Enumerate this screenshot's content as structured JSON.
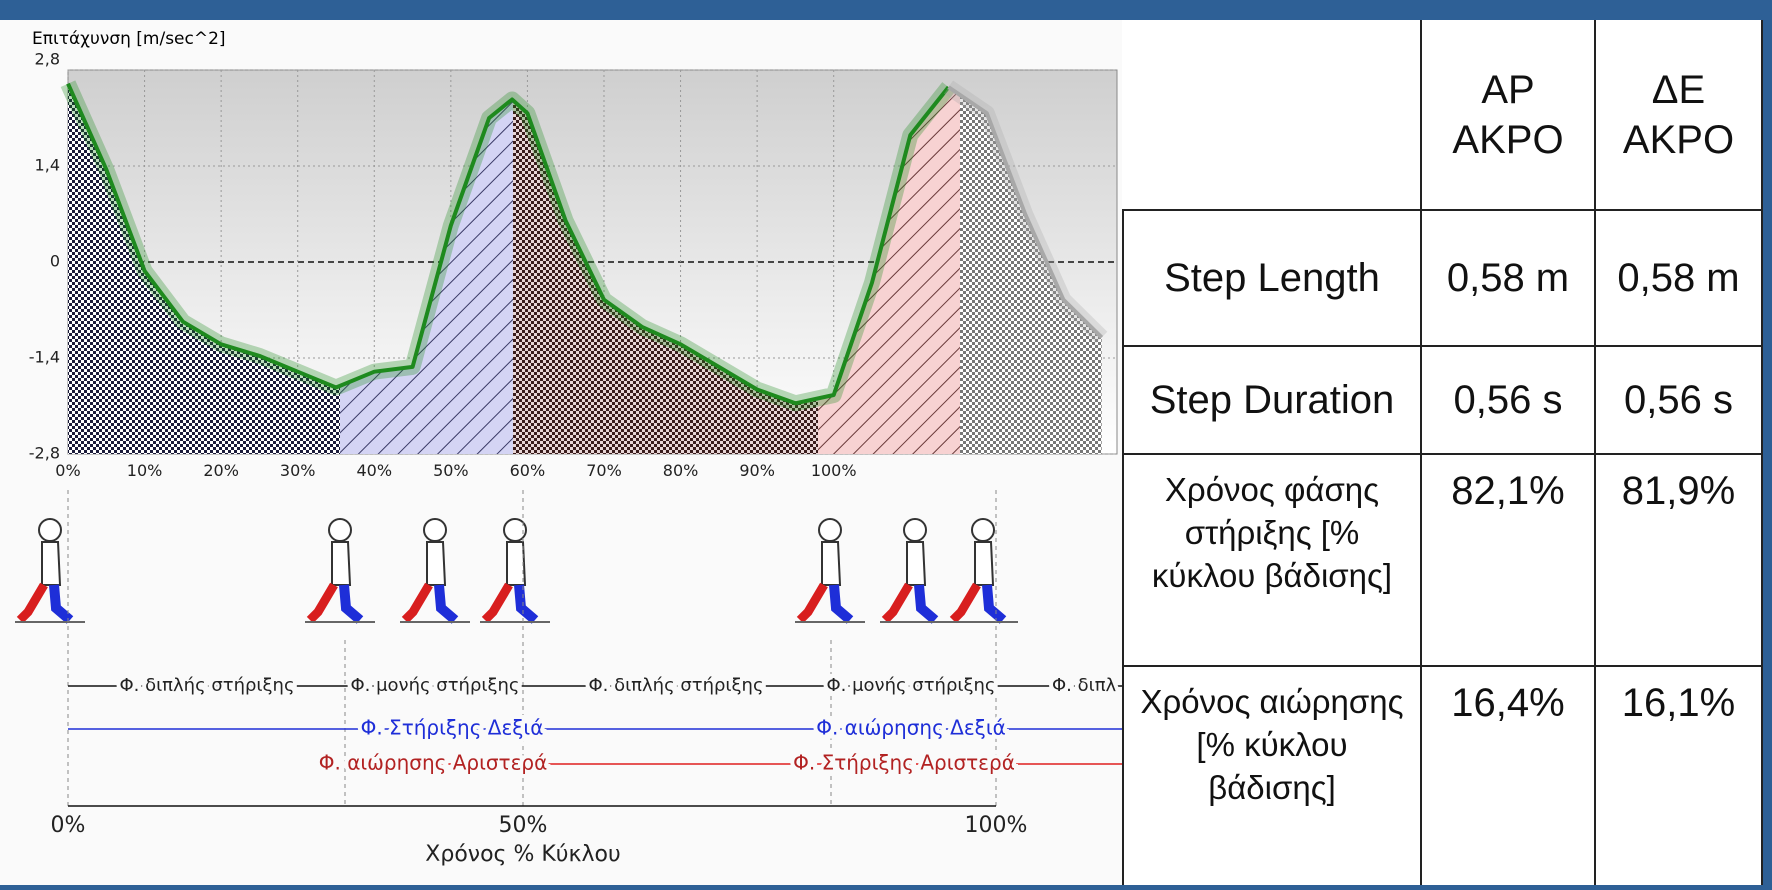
{
  "chart_data": {
    "type": "line",
    "y_label": "Επιτάχυνση [m/sec^2]",
    "x": [
      0,
      5,
      10,
      15,
      20,
      25,
      30,
      35,
      40,
      45,
      50,
      55,
      58,
      60,
      65,
      70,
      75,
      80,
      85,
      90,
      95,
      100,
      105,
      110,
      115,
      120,
      125,
      130,
      135
    ],
    "series": [
      {
        "color": "#1e8a1e",
        "values": [
          2.6,
          1.35,
          -0.13,
          -0.87,
          -1.2,
          -1.37,
          -1.6,
          -1.83,
          -1.6,
          -1.53,
          0.53,
          2.1,
          2.37,
          2.17,
          0.6,
          -0.55,
          -0.95,
          -1.2,
          -1.53,
          -1.86,
          -2.06,
          -1.94,
          -0.3,
          1.85,
          2.55,
          null,
          null,
          null,
          null
        ]
      },
      {
        "color": "#a8a8a8",
        "values": [
          null,
          null,
          null,
          null,
          null,
          null,
          null,
          null,
          null,
          null,
          null,
          null,
          null,
          null,
          null,
          null,
          null,
          null,
          null,
          null,
          null,
          null,
          null,
          null,
          2.55,
          2.17,
          0.7,
          -0.55,
          -1.1
        ]
      }
    ],
    "xlim": [
      0,
      137
    ],
    "ylim": [
      -2.8,
      2.8
    ],
    "xticks": [
      {
        "value": 0,
        "label": "0%"
      },
      {
        "value": 10,
        "label": "10%"
      },
      {
        "value": 20,
        "label": "20%"
      },
      {
        "value": 30,
        "label": "30%"
      },
      {
        "value": 40,
        "label": "40%"
      },
      {
        "value": 50,
        "label": "50%"
      },
      {
        "value": 60,
        "label": "60%"
      },
      {
        "value": 70,
        "label": "70%"
      },
      {
        "value": 80,
        "label": "80%"
      },
      {
        "value": 90,
        "label": "90%"
      },
      {
        "value": 100,
        "label": "100%"
      }
    ],
    "yticks": [
      {
        "value": -2.8,
        "label": "-2,8"
      },
      {
        "value": -1.4,
        "label": "-1,4"
      },
      0,
      {
        "value": 1.4,
        "label": "1,4"
      },
      {
        "value": 2.8,
        "label": "2,8"
      }
    ],
    "grid": true
  },
  "gait_phases": {
    "phase_labels": [
      "Φ. διπλής στήριξης",
      "Φ. μονής στήριξης",
      "Φ. διπλής στήριξης",
      "Φ. μονής στήριξης",
      "Φ. διπλ"
    ],
    "right_leg": [
      "Φ. Στήριξης Δεξιά",
      "Φ. αιώρησης Δεξιά"
    ],
    "left_leg": [
      "Φ. αιώρησης Αριστερά",
      "Φ. Στήριξης Αριστερά"
    ],
    "axis_labels": [
      "0%",
      "50%",
      "100%"
    ],
    "axis_title": "Χρόνος % Κύκλου"
  },
  "table": {
    "columns": [
      "ΑΡ ΑΚΡΟ",
      "ΔΕ ΑΚΡΟ"
    ],
    "rows": [
      [
        "Step Length",
        "0,58 m",
        "0,58 m"
      ],
      [
        "Step Duration",
        "0,56 s",
        "0,56 s"
      ],
      [
        "Χρόνος φάσης στήριξης [% κύκλου βάδισης]",
        "82,1%",
        "81,9%"
      ],
      [
        "Χρόνος αιώρησης [% κύκλου βάδισης]",
        "16,4%",
        "16,1%"
      ]
    ]
  }
}
